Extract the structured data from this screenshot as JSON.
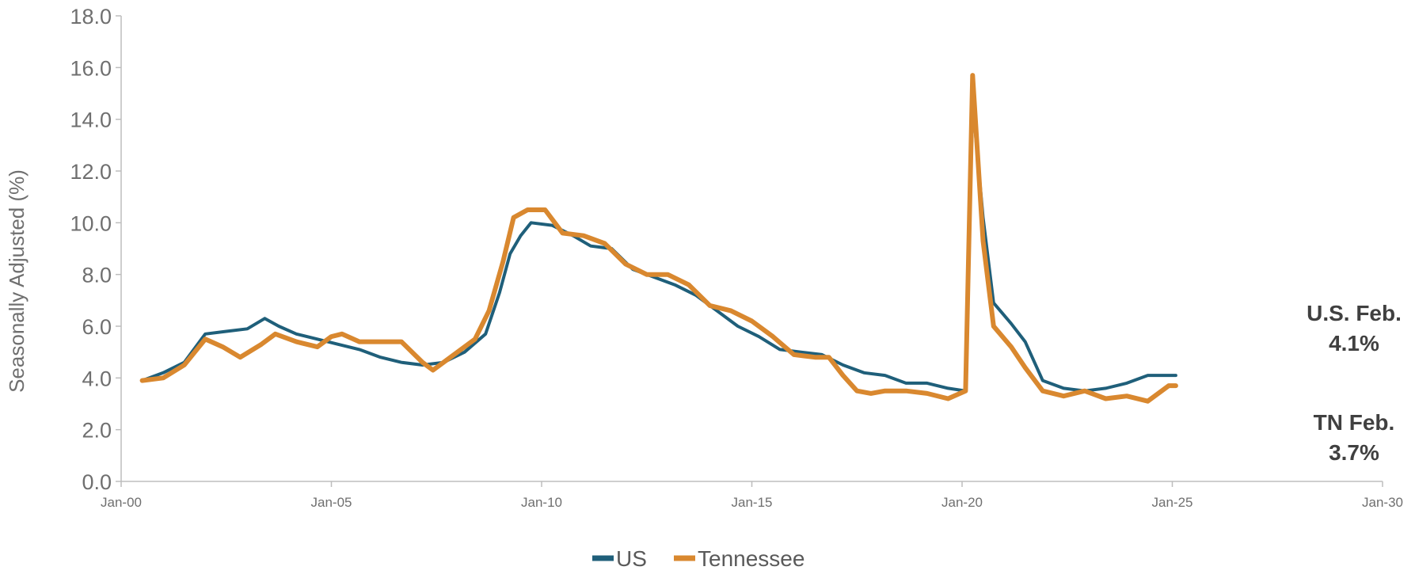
{
  "chart_data": {
    "type": "line",
    "title": "",
    "xlabel": "",
    "ylabel": "Seasonally Adjusted (%)",
    "ylim": [
      0,
      18
    ],
    "yticks": [
      "0.0",
      "2.0",
      "4.0",
      "6.0",
      "8.0",
      "10.0",
      "12.0",
      "14.0",
      "16.0",
      "18.0"
    ],
    "xlim": [
      "2000-01",
      "2030-01"
    ],
    "xticks": [
      "Jan-00",
      "Jan-05",
      "Jan-10",
      "Jan-15",
      "Jan-20",
      "Jan-25",
      "Jan-30"
    ],
    "grid": false,
    "legend_position": "bottom-center",
    "series": [
      {
        "name": "US",
        "color": "#1f5f7a",
        "points": [
          [
            "2000-07",
            3.9
          ],
          [
            "2001-01",
            4.2
          ],
          [
            "2001-07",
            4.6
          ],
          [
            "2002-01",
            5.7
          ],
          [
            "2002-07",
            5.8
          ],
          [
            "2003-01",
            5.9
          ],
          [
            "2003-06",
            6.3
          ],
          [
            "2003-10",
            6.0
          ],
          [
            "2004-03",
            5.7
          ],
          [
            "2004-09",
            5.5
          ],
          [
            "2005-03",
            5.3
          ],
          [
            "2005-09",
            5.1
          ],
          [
            "2006-03",
            4.8
          ],
          [
            "2006-09",
            4.6
          ],
          [
            "2007-03",
            4.5
          ],
          [
            "2007-09",
            4.6
          ],
          [
            "2008-03",
            5.0
          ],
          [
            "2008-09",
            5.7
          ],
          [
            "2009-01",
            7.3
          ],
          [
            "2009-04",
            8.8
          ],
          [
            "2009-07",
            9.5
          ],
          [
            "2009-10",
            10.0
          ],
          [
            "2010-04",
            9.9
          ],
          [
            "2010-10",
            9.5
          ],
          [
            "2011-03",
            9.1
          ],
          [
            "2011-09",
            9.0
          ],
          [
            "2012-03",
            8.2
          ],
          [
            "2012-09",
            7.9
          ],
          [
            "2013-03",
            7.6
          ],
          [
            "2013-09",
            7.2
          ],
          [
            "2014-03",
            6.6
          ],
          [
            "2014-09",
            6.0
          ],
          [
            "2015-03",
            5.6
          ],
          [
            "2015-09",
            5.1
          ],
          [
            "2016-03",
            5.0
          ],
          [
            "2016-09",
            4.9
          ],
          [
            "2017-03",
            4.5
          ],
          [
            "2017-09",
            4.2
          ],
          [
            "2018-03",
            4.1
          ],
          [
            "2018-09",
            3.8
          ],
          [
            "2019-03",
            3.8
          ],
          [
            "2019-09",
            3.6
          ],
          [
            "2020-02",
            3.5
          ],
          [
            "2020-04",
            14.7
          ],
          [
            "2020-07",
            10.2
          ],
          [
            "2020-10",
            6.9
          ],
          [
            "2021-03",
            6.1
          ],
          [
            "2021-07",
            5.4
          ],
          [
            "2021-12",
            3.9
          ],
          [
            "2022-06",
            3.6
          ],
          [
            "2022-12",
            3.5
          ],
          [
            "2023-06",
            3.6
          ],
          [
            "2023-12",
            3.8
          ],
          [
            "2024-06",
            4.1
          ],
          [
            "2024-12",
            4.1
          ],
          [
            "2025-02",
            4.1
          ]
        ]
      },
      {
        "name": "Tennessee",
        "color": "#d9882f",
        "points": [
          [
            "2000-07",
            3.9
          ],
          [
            "2001-01",
            4.0
          ],
          [
            "2001-07",
            4.5
          ],
          [
            "2002-01",
            5.5
          ],
          [
            "2002-06",
            5.2
          ],
          [
            "2002-11",
            4.8
          ],
          [
            "2003-05",
            5.3
          ],
          [
            "2003-09",
            5.7
          ],
          [
            "2004-03",
            5.4
          ],
          [
            "2004-09",
            5.2
          ],
          [
            "2005-01",
            5.6
          ],
          [
            "2005-04",
            5.7
          ],
          [
            "2005-09",
            5.4
          ],
          [
            "2006-03",
            5.4
          ],
          [
            "2006-09",
            5.4
          ],
          [
            "2007-03",
            4.6
          ],
          [
            "2007-06",
            4.3
          ],
          [
            "2007-11",
            4.8
          ],
          [
            "2008-06",
            5.5
          ],
          [
            "2008-10",
            6.6
          ],
          [
            "2009-02",
            8.5
          ],
          [
            "2009-05",
            10.2
          ],
          [
            "2009-09",
            10.5
          ],
          [
            "2010-02",
            10.5
          ],
          [
            "2010-07",
            9.6
          ],
          [
            "2011-01",
            9.5
          ],
          [
            "2011-07",
            9.2
          ],
          [
            "2012-01",
            8.4
          ],
          [
            "2012-07",
            8.0
          ],
          [
            "2013-01",
            8.0
          ],
          [
            "2013-07",
            7.6
          ],
          [
            "2014-01",
            6.8
          ],
          [
            "2014-07",
            6.6
          ],
          [
            "2015-01",
            6.2
          ],
          [
            "2015-07",
            5.6
          ],
          [
            "2016-01",
            4.9
          ],
          [
            "2016-07",
            4.8
          ],
          [
            "2016-11",
            4.8
          ],
          [
            "2017-03",
            4.1
          ],
          [
            "2017-07",
            3.5
          ],
          [
            "2017-11",
            3.4
          ],
          [
            "2018-03",
            3.5
          ],
          [
            "2018-09",
            3.5
          ],
          [
            "2019-03",
            3.4
          ],
          [
            "2019-09",
            3.2
          ],
          [
            "2020-02",
            3.5
          ],
          [
            "2020-04",
            15.7
          ],
          [
            "2020-07",
            9.3
          ],
          [
            "2020-10",
            6.0
          ],
          [
            "2021-03",
            5.2
          ],
          [
            "2021-07",
            4.4
          ],
          [
            "2021-12",
            3.5
          ],
          [
            "2022-06",
            3.3
          ],
          [
            "2022-12",
            3.5
          ],
          [
            "2023-06",
            3.2
          ],
          [
            "2023-12",
            3.3
          ],
          [
            "2024-06",
            3.1
          ],
          [
            "2024-12",
            3.7
          ],
          [
            "2025-02",
            3.7
          ]
        ]
      }
    ],
    "annotations": [
      {
        "lines": [
          "U.S. Feb.",
          "4.1%"
        ]
      },
      {
        "lines": [
          "TN Feb.",
          "3.7%"
        ]
      }
    ]
  }
}
